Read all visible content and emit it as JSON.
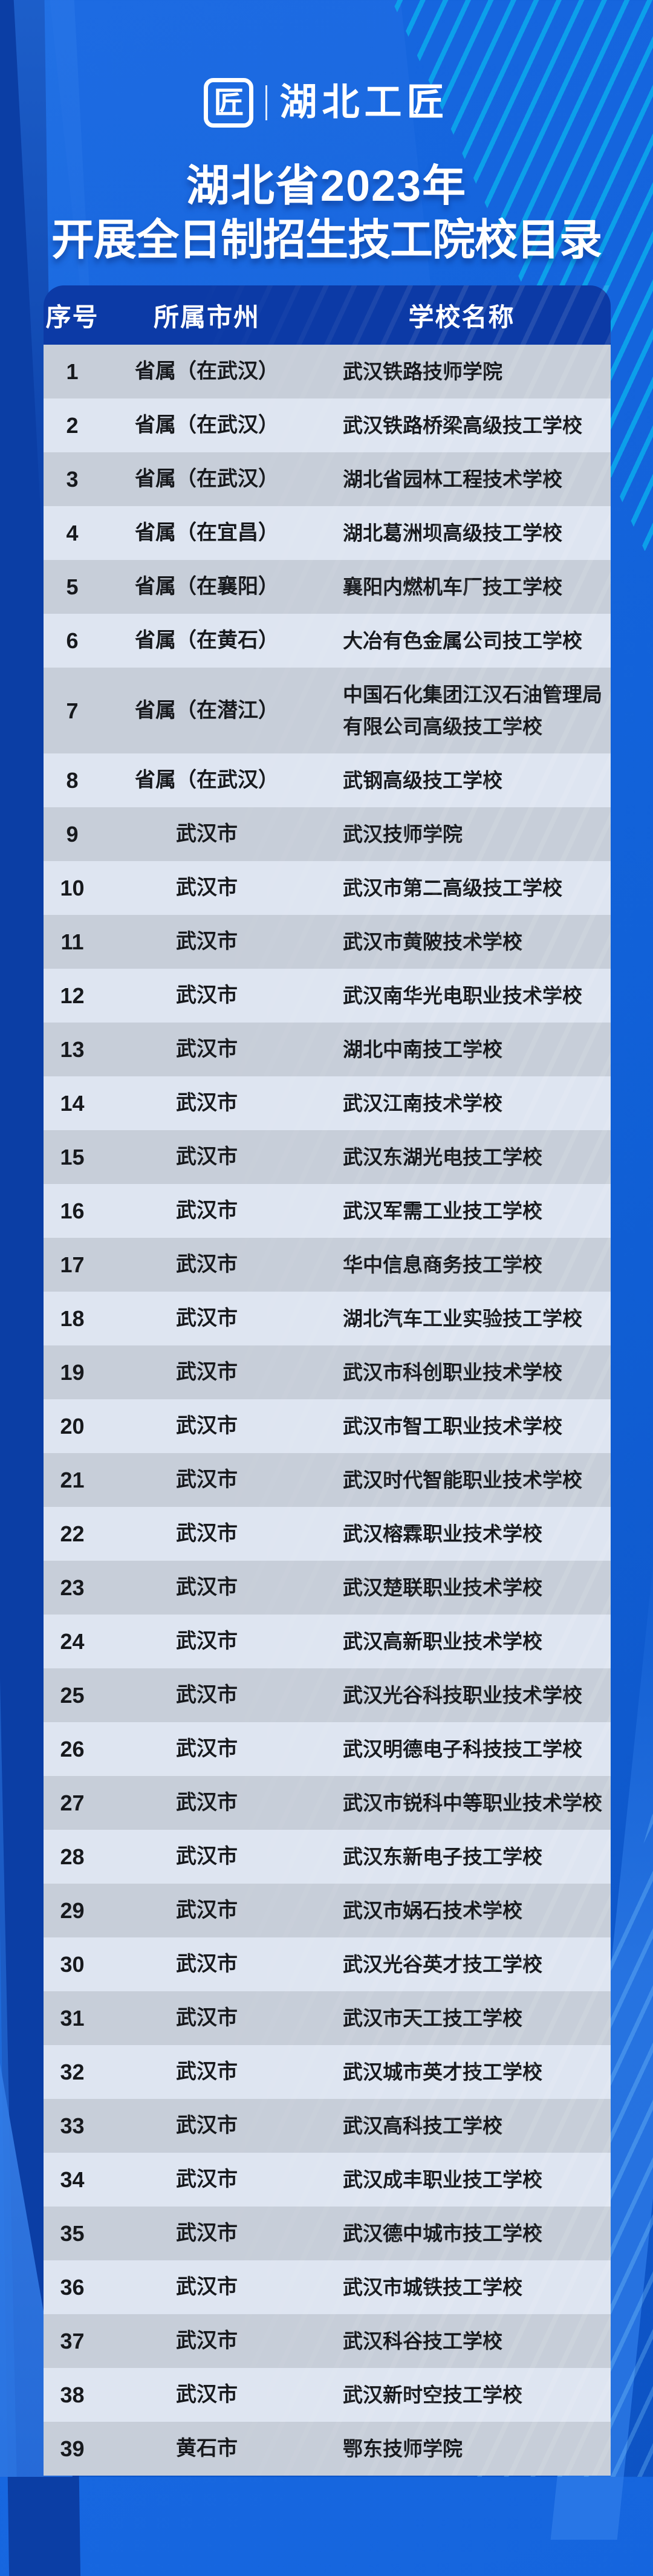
{
  "brand": {
    "logo_text": "湖北工匠",
    "logo_glyph": "匠"
  },
  "title": {
    "line1": "湖北省2023年",
    "line2": "开展全日制招生技工院校目录"
  },
  "colors": {
    "background_blue": "#1161d8",
    "header_bg": "#0c3aa6",
    "row_light": "#dee5f1",
    "row_dark": "#c7ced9",
    "stripe_cyan": "#0ba6ec",
    "text_dark": "#17191d",
    "text_white": "#ffffff"
  },
  "table": {
    "columns": {
      "serial": "序号",
      "region": "所属市州",
      "school": "学校名称"
    },
    "rows": [
      {
        "serial": "1",
        "region": "省属（在武汉）",
        "school": "武汉铁路技师学院"
      },
      {
        "serial": "2",
        "region": "省属（在武汉）",
        "school": "武汉铁路桥梁高级技工学校"
      },
      {
        "serial": "3",
        "region": "省属（在武汉）",
        "school": "湖北省园林工程技术学校"
      },
      {
        "serial": "4",
        "region": "省属（在宜昌）",
        "school": "湖北葛洲坝高级技工学校"
      },
      {
        "serial": "5",
        "region": "省属（在襄阳）",
        "school": "襄阳内燃机车厂技工学校"
      },
      {
        "serial": "6",
        "region": "省属（在黄石）",
        "school": "大冶有色金属公司技工学校"
      },
      {
        "serial": "7",
        "region": "省属（在潜江）",
        "school": "中国石化集团江汉石油管理局\n有限公司高级技工学校"
      },
      {
        "serial": "8",
        "region": "省属（在武汉）",
        "school": "武钢高级技工学校"
      },
      {
        "serial": "9",
        "region": "武汉市",
        "school": "武汉技师学院"
      },
      {
        "serial": "10",
        "region": "武汉市",
        "school": "武汉市第二高级技工学校"
      },
      {
        "serial": "11",
        "region": "武汉市",
        "school": "武汉市黄陂技术学校"
      },
      {
        "serial": "12",
        "region": "武汉市",
        "school": "武汉南华光电职业技术学校"
      },
      {
        "serial": "13",
        "region": "武汉市",
        "school": "湖北中南技工学校"
      },
      {
        "serial": "14",
        "region": "武汉市",
        "school": "武汉江南技术学校"
      },
      {
        "serial": "15",
        "region": "武汉市",
        "school": "武汉东湖光电技工学校"
      },
      {
        "serial": "16",
        "region": "武汉市",
        "school": "武汉军需工业技工学校"
      },
      {
        "serial": "17",
        "region": "武汉市",
        "school": "华中信息商务技工学校"
      },
      {
        "serial": "18",
        "region": "武汉市",
        "school": "湖北汽车工业实验技工学校"
      },
      {
        "serial": "19",
        "region": "武汉市",
        "school": "武汉市科创职业技术学校"
      },
      {
        "serial": "20",
        "region": "武汉市",
        "school": "武汉市智工职业技术学校"
      },
      {
        "serial": "21",
        "region": "武汉市",
        "school": "武汉时代智能职业技术学校"
      },
      {
        "serial": "22",
        "region": "武汉市",
        "school": "武汉榕霖职业技术学校"
      },
      {
        "serial": "23",
        "region": "武汉市",
        "school": "武汉楚联职业技术学校"
      },
      {
        "serial": "24",
        "region": "武汉市",
        "school": "武汉高新职业技术学校"
      },
      {
        "serial": "25",
        "region": "武汉市",
        "school": "武汉光谷科技职业技术学校"
      },
      {
        "serial": "26",
        "region": "武汉市",
        "school": "武汉明德电子科技技工学校"
      },
      {
        "serial": "27",
        "region": "武汉市",
        "school": "武汉市锐科中等职业技术学校"
      },
      {
        "serial": "28",
        "region": "武汉市",
        "school": "武汉东新电子技工学校"
      },
      {
        "serial": "29",
        "region": "武汉市",
        "school": "武汉市娲石技术学校"
      },
      {
        "serial": "30",
        "region": "武汉市",
        "school": "武汉光谷英才技工学校"
      },
      {
        "serial": "31",
        "region": "武汉市",
        "school": "武汉市天工技工学校"
      },
      {
        "serial": "32",
        "region": "武汉市",
        "school": "武汉城市英才技工学校"
      },
      {
        "serial": "33",
        "region": "武汉市",
        "school": "武汉高科技工学校"
      },
      {
        "serial": "34",
        "region": "武汉市",
        "school": "武汉成丰职业技工学校"
      },
      {
        "serial": "35",
        "region": "武汉市",
        "school": "武汉德中城市技工学校"
      },
      {
        "serial": "36",
        "region": "武汉市",
        "school": "武汉市城铁技工学校"
      },
      {
        "serial": "37",
        "region": "武汉市",
        "school": "武汉科谷技工学校"
      },
      {
        "serial": "38",
        "region": "武汉市",
        "school": "武汉新时空技工学校"
      },
      {
        "serial": "39",
        "region": "黄石市",
        "school": "鄂东技师学院"
      }
    ]
  }
}
